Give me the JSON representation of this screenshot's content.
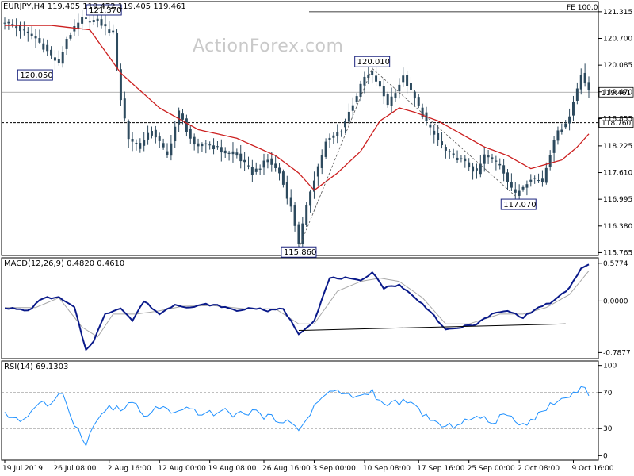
{
  "chart_data": [
    {
      "type": "candlestick",
      "title": "EURJPY,H4",
      "ohlc_readout": [
        "119.405",
        "119.472",
        "119.405",
        "119.461"
      ],
      "watermark": "ActionForex.com",
      "price_ticks": [
        "121.315",
        "120.700",
        "120.085",
        "119.470",
        "118.855",
        "118.225",
        "117.610",
        "116.995",
        "116.380",
        "115.765"
      ],
      "ylim": [
        115.7,
        121.55
      ],
      "last_price": {
        "value": 119.461,
        "label": "119.461"
      },
      "support_level": {
        "value": 118.76,
        "label": "118.760"
      },
      "fe_level": {
        "value": 121.315,
        "label": "FE 100.0"
      },
      "annotations": [
        {
          "label": "121.370",
          "bar": 24,
          "price": 121.37
        },
        {
          "label": "120.050",
          "bar": 14,
          "price": 120.05
        },
        {
          "label": "120.010",
          "bar": 95,
          "price": 120.01
        },
        {
          "label": "115.860",
          "bar": 76,
          "price": 115.86
        },
        {
          "label": "117.070",
          "bar": 132,
          "price": 117.07
        }
      ],
      "date_labels": [
        "19 Jul 2019",
        "26 Jul 08:00",
        "2 Aug 16:00",
        "12 Aug 00:00",
        "19 Aug 08:00",
        "26 Aug 16:00",
        "3 Sep 00:00",
        "10 Sep 08:00",
        "17 Sep 16:00",
        "25 Sep 00:00",
        "2 Oct 08:00",
        "9 Oct 16:00"
      ],
      "date_label_bars": [
        0,
        13,
        27,
        40,
        53,
        67,
        80,
        93,
        107,
        120,
        133,
        147
      ],
      "close_anchors": [
        [
          0,
          121.1
        ],
        [
          3,
          120.95
        ],
        [
          8,
          120.7
        ],
        [
          12,
          120.3
        ],
        [
          14,
          120.1
        ],
        [
          16,
          120.7
        ],
        [
          20,
          121.15
        ],
        [
          24,
          121.1
        ],
        [
          28,
          120.8
        ],
        [
          30,
          119.3
        ],
        [
          32,
          118.4
        ],
        [
          35,
          118.2
        ],
        [
          38,
          118.6
        ],
        [
          42,
          118.0
        ],
        [
          45,
          119.0
        ],
        [
          49,
          118.2
        ],
        [
          52,
          118.3
        ],
        [
          56,
          118.1
        ],
        [
          60,
          118.0
        ],
        [
          64,
          117.6
        ],
        [
          68,
          117.9
        ],
        [
          71,
          117.6
        ],
        [
          74,
          116.8
        ],
        [
          76,
          116.0
        ],
        [
          79,
          117.2
        ],
        [
          83,
          118.3
        ],
        [
          87,
          118.6
        ],
        [
          90,
          119.2
        ],
        [
          93,
          119.8
        ],
        [
          95,
          119.9
        ],
        [
          99,
          119.2
        ],
        [
          103,
          119.8
        ],
        [
          106,
          119.3
        ],
        [
          110,
          118.6
        ],
        [
          114,
          118.1
        ],
        [
          118,
          117.9
        ],
        [
          122,
          117.6
        ],
        [
          124,
          118.0
        ],
        [
          128,
          117.8
        ],
        [
          132,
          117.1
        ],
        [
          136,
          117.5
        ],
        [
          139,
          117.4
        ],
        [
          142,
          118.4
        ],
        [
          146,
          118.9
        ],
        [
          149,
          119.9
        ],
        [
          151,
          119.46
        ]
      ],
      "moving_average_anchors": [
        [
          0,
          121.0
        ],
        [
          12,
          121.0
        ],
        [
          22,
          120.9
        ],
        [
          30,
          119.9
        ],
        [
          40,
          119.1
        ],
        [
          50,
          118.6
        ],
        [
          60,
          118.4
        ],
        [
          70,
          118.0
        ],
        [
          76,
          117.6
        ],
        [
          80,
          117.2
        ],
        [
          86,
          117.6
        ],
        [
          92,
          118.1
        ],
        [
          97,
          118.8
        ],
        [
          102,
          119.1
        ],
        [
          106,
          119.0
        ],
        [
          112,
          118.8
        ],
        [
          118,
          118.5
        ],
        [
          124,
          118.2
        ],
        [
          130,
          118.0
        ],
        [
          136,
          117.7
        ],
        [
          140,
          117.8
        ],
        [
          144,
          117.9
        ],
        [
          148,
          118.2
        ],
        [
          151,
          118.5
        ]
      ],
      "bars": 152
    },
    {
      "type": "line",
      "title": "MACD(12,26,9) 0.4820 0.4610",
      "y_ticks": [
        "0.5774",
        "0.0000",
        "-0.7877"
      ],
      "ylim": [
        -0.88,
        0.66
      ],
      "macd_anchors": [
        [
          0,
          -0.1
        ],
        [
          6,
          -0.15
        ],
        [
          10,
          0.05
        ],
        [
          14,
          0.05
        ],
        [
          18,
          -0.1
        ],
        [
          21,
          -0.75
        ],
        [
          23,
          -0.6
        ],
        [
          26,
          -0.2
        ],
        [
          30,
          -0.1
        ],
        [
          33,
          -0.3
        ],
        [
          36,
          0.0
        ],
        [
          40,
          -0.2
        ],
        [
          44,
          -0.05
        ],
        [
          48,
          -0.1
        ],
        [
          52,
          -0.05
        ],
        [
          56,
          -0.08
        ],
        [
          60,
          -0.15
        ],
        [
          64,
          -0.1
        ],
        [
          68,
          -0.15
        ],
        [
          72,
          -0.12
        ],
        [
          76,
          -0.5
        ],
        [
          80,
          -0.3
        ],
        [
          84,
          0.35
        ],
        [
          88,
          0.35
        ],
        [
          92,
          0.3
        ],
        [
          95,
          0.45
        ],
        [
          98,
          0.2
        ],
        [
          102,
          0.25
        ],
        [
          106,
          0.05
        ],
        [
          110,
          -0.15
        ],
        [
          114,
          -0.45
        ],
        [
          118,
          -0.4
        ],
        [
          122,
          -0.35
        ],
        [
          126,
          -0.2
        ],
        [
          130,
          -0.15
        ],
        [
          134,
          -0.25
        ],
        [
          138,
          -0.1
        ],
        [
          142,
          0.0
        ],
        [
          146,
          0.2
        ],
        [
          149,
          0.5
        ],
        [
          151,
          0.55
        ]
      ],
      "signal_anchors": [
        [
          0,
          -0.1
        ],
        [
          8,
          -0.1
        ],
        [
          14,
          0.05
        ],
        [
          20,
          -0.4
        ],
        [
          24,
          -0.55
        ],
        [
          28,
          -0.2
        ],
        [
          34,
          -0.2
        ],
        [
          40,
          -0.15
        ],
        [
          46,
          -0.08
        ],
        [
          54,
          -0.07
        ],
        [
          62,
          -0.12
        ],
        [
          70,
          -0.12
        ],
        [
          76,
          -0.35
        ],
        [
          80,
          -0.35
        ],
        [
          86,
          0.15
        ],
        [
          92,
          0.3
        ],
        [
          97,
          0.35
        ],
        [
          102,
          0.3
        ],
        [
          108,
          0.05
        ],
        [
          114,
          -0.35
        ],
        [
          120,
          -0.35
        ],
        [
          128,
          -0.2
        ],
        [
          134,
          -0.2
        ],
        [
          140,
          -0.1
        ],
        [
          146,
          0.1
        ],
        [
          151,
          0.46
        ]
      ],
      "trend_line": [
        [
          76,
          -0.45
        ],
        [
          145,
          -0.35
        ]
      ]
    },
    {
      "type": "line",
      "title": "RSI(14) 69.1303",
      "y_ticks": [
        "100",
        "70",
        "30",
        "0"
      ],
      "ylim": [
        0,
        100
      ],
      "levels": [
        70,
        30
      ],
      "rsi_anchors": [
        [
          0,
          45
        ],
        [
          5,
          40
        ],
        [
          9,
          60
        ],
        [
          12,
          55
        ],
        [
          15,
          70
        ],
        [
          18,
          35
        ],
        [
          21,
          15
        ],
        [
          24,
          40
        ],
        [
          27,
          55
        ],
        [
          30,
          50
        ],
        [
          33,
          60
        ],
        [
          36,
          42
        ],
        [
          40,
          55
        ],
        [
          44,
          45
        ],
        [
          48,
          52
        ],
        [
          52,
          45
        ],
        [
          56,
          50
        ],
        [
          60,
          45
        ],
        [
          64,
          50
        ],
        [
          68,
          42
        ],
        [
          72,
          40
        ],
        [
          76,
          28
        ],
        [
          80,
          55
        ],
        [
          84,
          72
        ],
        [
          88,
          68
        ],
        [
          92,
          65
        ],
        [
          95,
          72
        ],
        [
          98,
          55
        ],
        [
          102,
          60
        ],
        [
          106,
          55
        ],
        [
          110,
          40
        ],
        [
          114,
          30
        ],
        [
          118,
          38
        ],
        [
          122,
          42
        ],
        [
          126,
          38
        ],
        [
          130,
          45
        ],
        [
          134,
          35
        ],
        [
          138,
          45
        ],
        [
          142,
          60
        ],
        [
          146,
          65
        ],
        [
          149,
          78
        ],
        [
          151,
          69
        ]
      ]
    }
  ]
}
